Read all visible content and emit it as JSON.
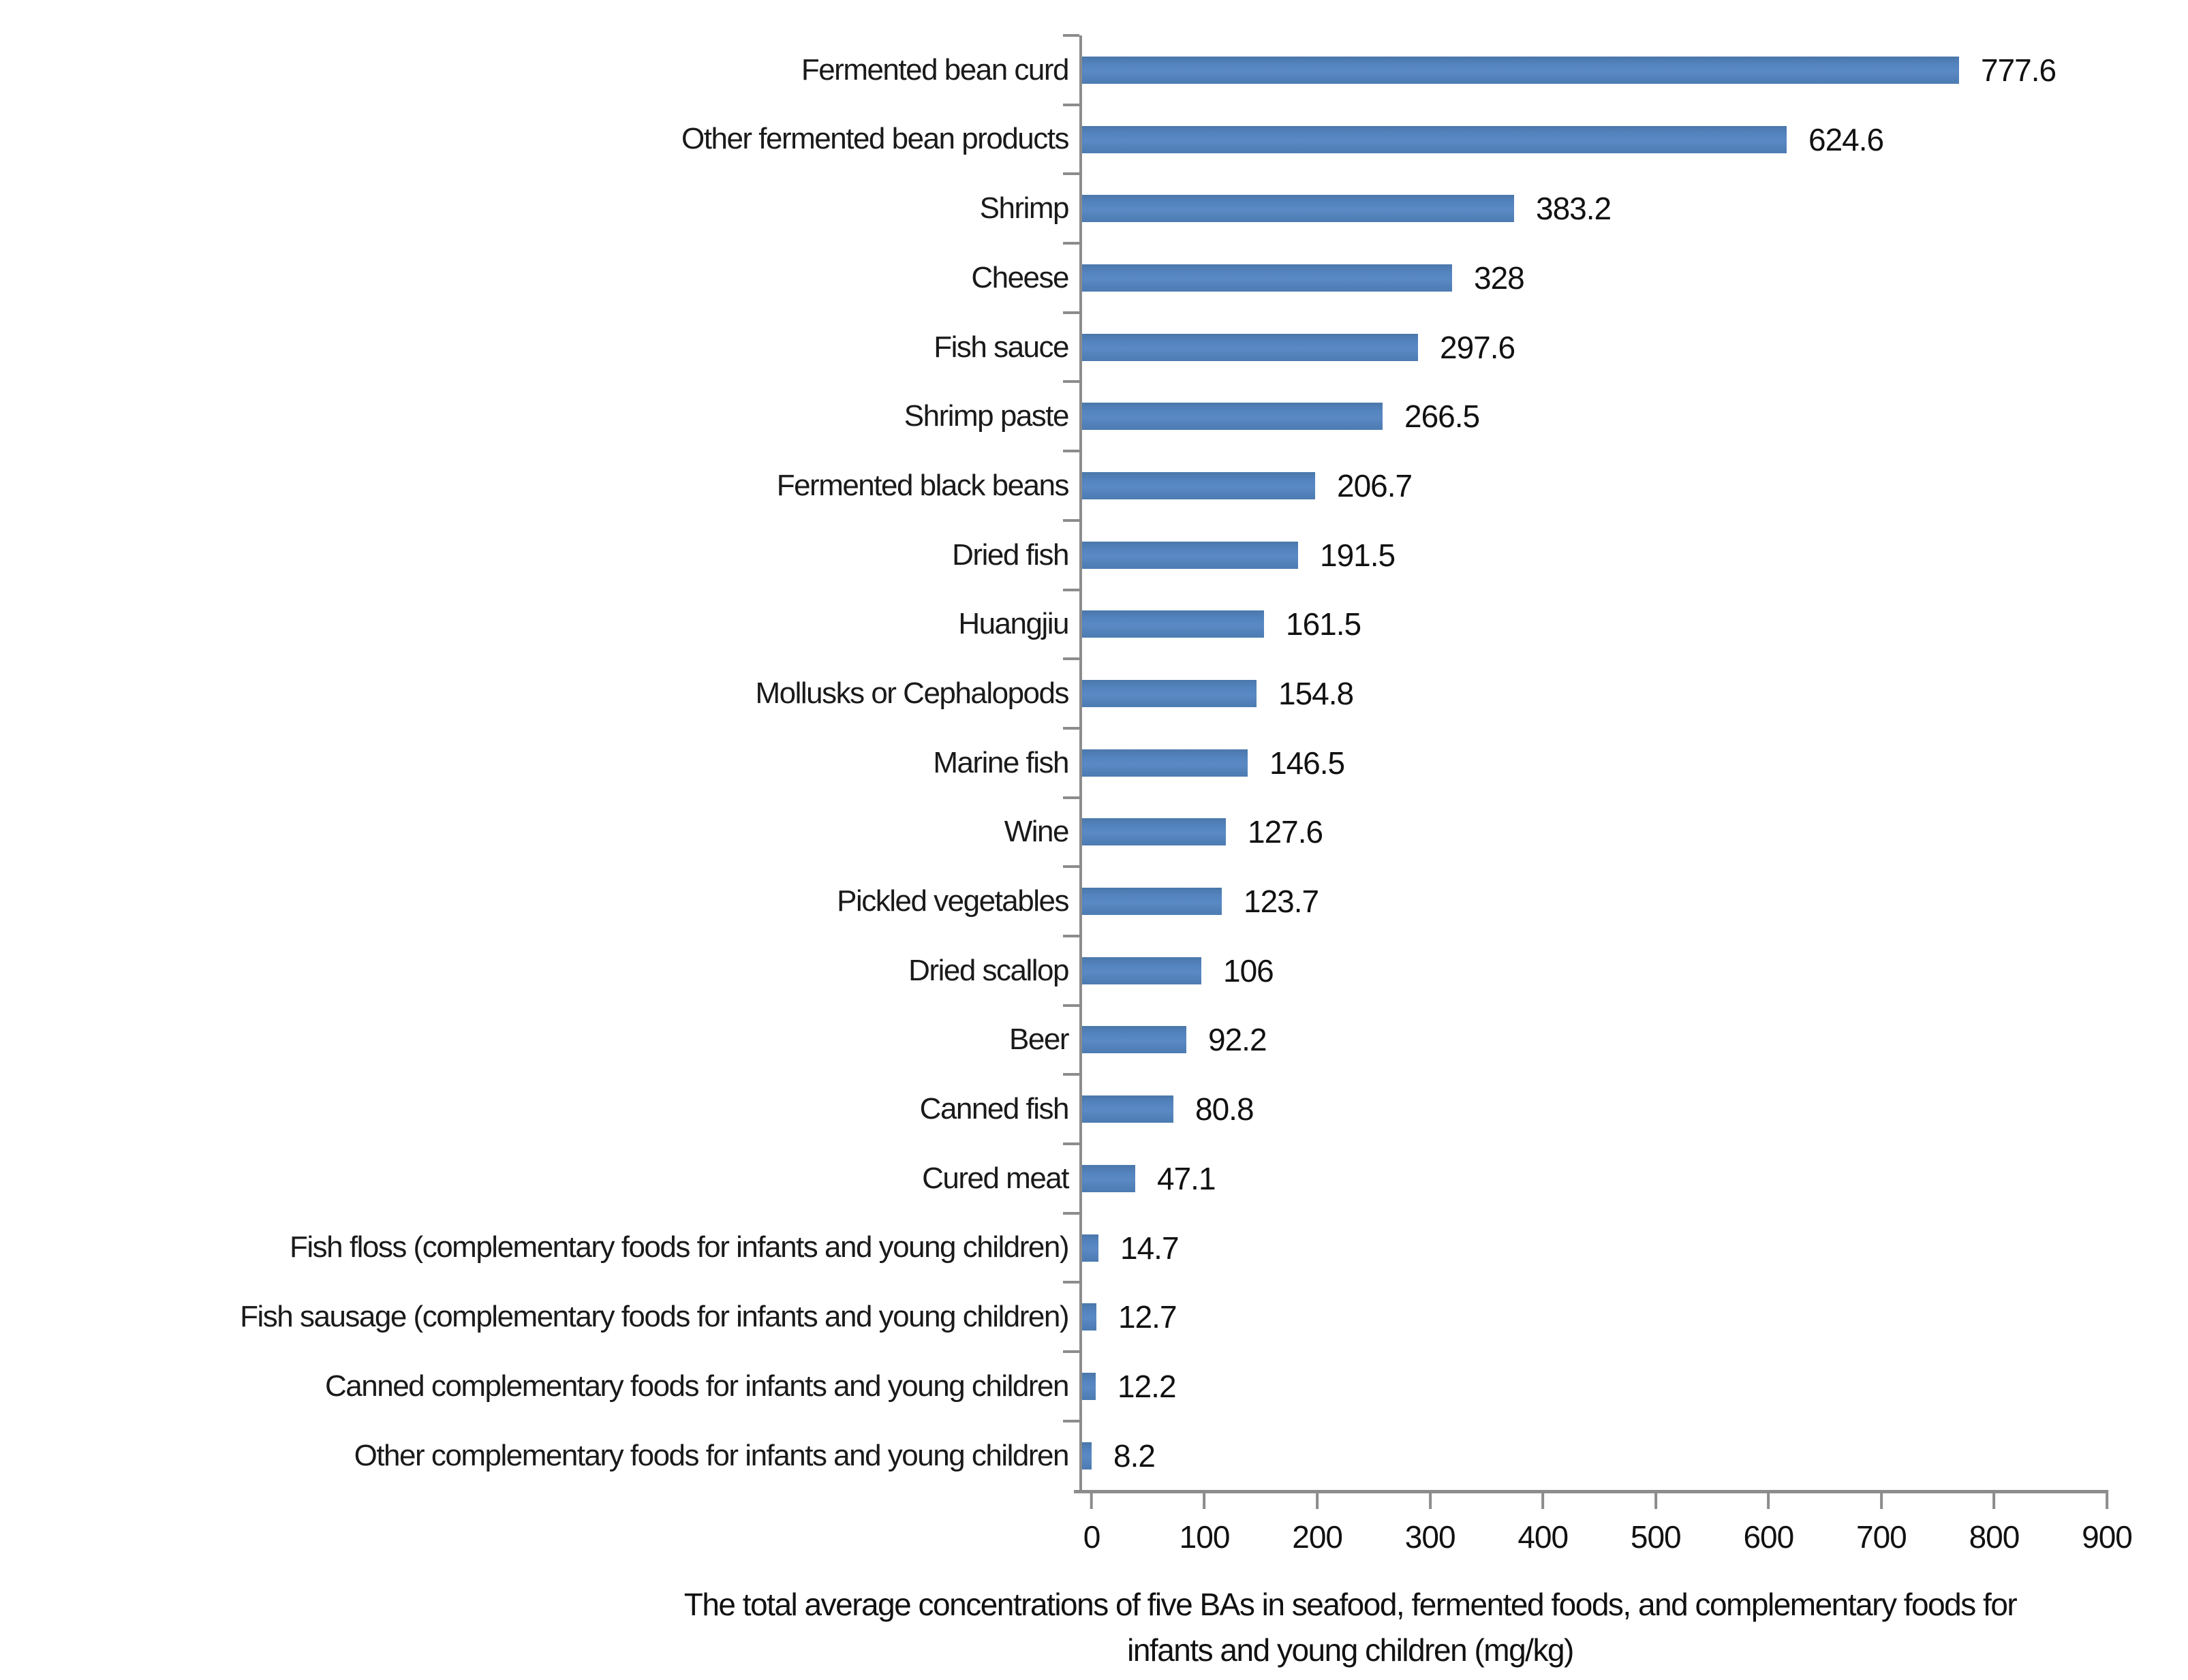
{
  "chart_data": {
    "type": "bar",
    "orientation": "horizontal",
    "title": "",
    "categories": [
      "Fermented bean curd",
      "Other fermented bean products",
      "Shrimp",
      "Cheese",
      "Fish sauce",
      "Shrimp paste",
      "Fermented black beans",
      "Dried fish",
      "Huangjiu",
      "Mollusks or Cephalopods",
      "Marine fish",
      "Wine",
      "Pickled vegetables",
      "Dried scallop",
      "Beer",
      "Canned fish",
      "Cured meat",
      "Fish floss (complementary foods for infants and young children)",
      "Fish sausage (complementary foods for infants and young children)",
      "Canned complementary foods for infants and young children",
      "Other complementary foods for infants and young children"
    ],
    "values": [
      777.6,
      624.6,
      383.2,
      328,
      297.6,
      266.5,
      206.7,
      191.5,
      161.5,
      154.8,
      146.5,
      127.6,
      123.7,
      106,
      92.2,
      80.8,
      47.1,
      14.7,
      12.7,
      12.2,
      8.2
    ],
    "value_labels": [
      "777.6",
      "624.6",
      "383.2",
      "328",
      "297.6",
      "266.5",
      "206.7",
      "191.5",
      "161.5",
      "154.8",
      "146.5",
      "127.6",
      "123.7",
      "106",
      "92.2",
      "80.8",
      "47.1",
      "14.7",
      "12.7",
      "12.2",
      "8.2"
    ],
    "xlim": [
      0,
      900
    ],
    "x_ticks": [
      "0",
      "100",
      "200",
      "300",
      "400",
      "500",
      "600",
      "700",
      "800",
      "900"
    ],
    "grid": false,
    "legend": false,
    "bar_color": "#4F81BD",
    "axis_color": "#8C8C8C",
    "caption": "The total average concentrations of five BAs in seafood, fermented foods, and complementary foods for infants and young children (mg/kg)",
    "caption_line1": "The total average concentrations of five BAs in seafood, fermented foods, and complementary foods for",
    "caption_line2": "infants and young children (mg/kg)"
  }
}
